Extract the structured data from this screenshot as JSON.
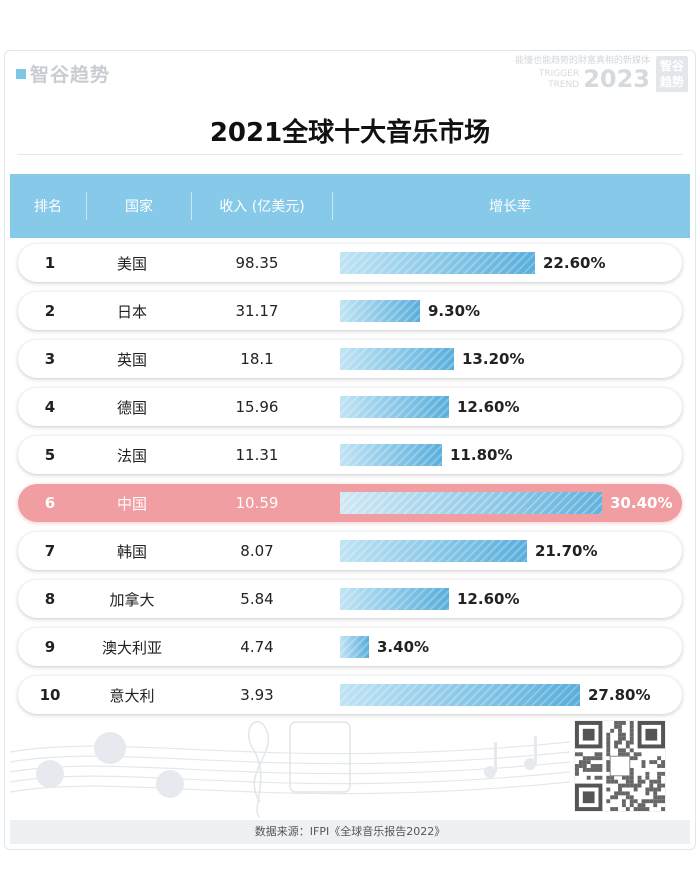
{
  "brand": {
    "logo": "智谷趋势",
    "slogan": "能懂也能趋势的财富真相的新媒体",
    "tag_en": [
      "TRIGGER",
      "TREND"
    ],
    "year": "2023",
    "tag_cn": [
      "智谷",
      "趋势"
    ]
  },
  "chart_data": {
    "type": "table",
    "title": "2021全球十大音乐市场",
    "columns": [
      "排名",
      "国家",
      "收入 (亿美元)",
      "增长率"
    ],
    "rows": [
      {
        "rank": "1",
        "country": "美国",
        "revenue": "98.35",
        "growth": 22.6,
        "growth_label": "22.60%"
      },
      {
        "rank": "2",
        "country": "日本",
        "revenue": "31.17",
        "growth": 9.3,
        "growth_label": "9.30%"
      },
      {
        "rank": "3",
        "country": "英国",
        "revenue": "18.1",
        "growth": 13.2,
        "growth_label": "13.20%"
      },
      {
        "rank": "4",
        "country": "德国",
        "revenue": "15.96",
        "growth": 12.6,
        "growth_label": "12.60%"
      },
      {
        "rank": "5",
        "country": "法国",
        "revenue": "11.31",
        "growth": 11.8,
        "growth_label": "11.80%"
      },
      {
        "rank": "6",
        "country": "中国",
        "revenue": "10.59",
        "growth": 30.4,
        "growth_label": "30.40%",
        "highlight": true
      },
      {
        "rank": "7",
        "country": "韩国",
        "revenue": "8.07",
        "growth": 21.7,
        "growth_label": "21.70%"
      },
      {
        "rank": "8",
        "country": "加拿大",
        "revenue": "5.84",
        "growth": 12.6,
        "growth_label": "12.60%"
      },
      {
        "rank": "9",
        "country": "澳大利亚",
        "revenue": "4.74",
        "growth": 3.4,
        "growth_label": "3.40%"
      },
      {
        "rank": "10",
        "country": "意大利",
        "revenue": "3.93",
        "growth": 27.8,
        "growth_label": "27.80%"
      }
    ],
    "colors": {
      "header": "#86c9e8",
      "bar": "#58aedb",
      "highlight": "#f09ea1"
    }
  },
  "footer": {
    "source": "数据来源：IFPI《全球音乐报告2022》"
  }
}
